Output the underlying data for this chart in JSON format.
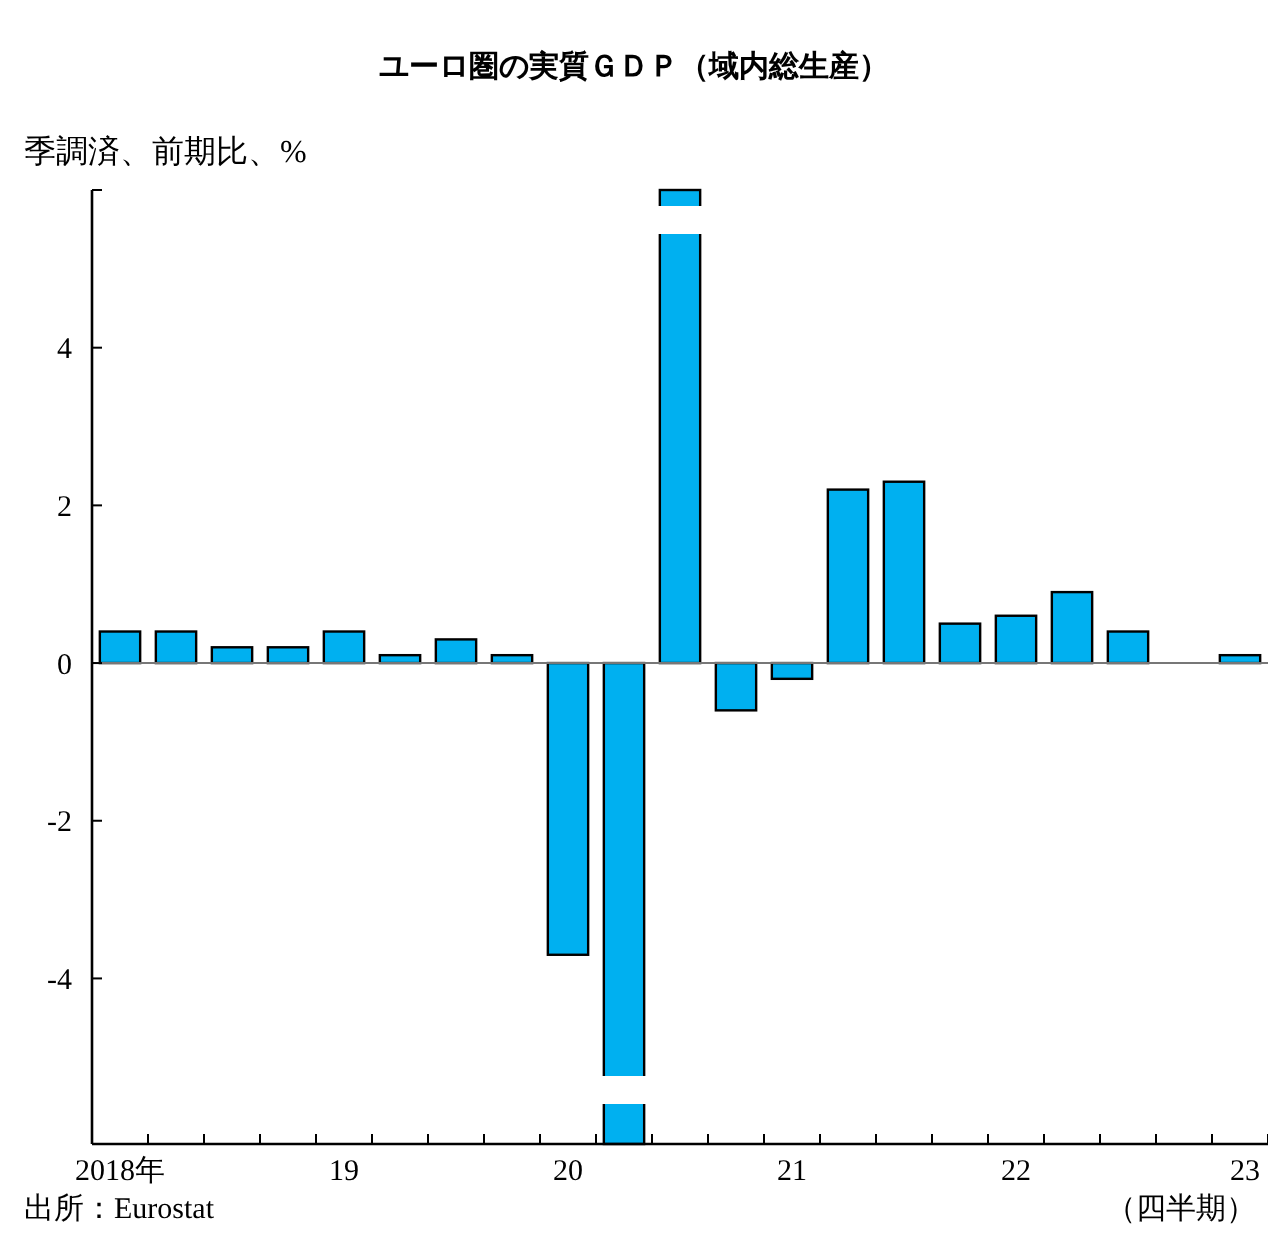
{
  "chart_data": {
    "type": "bar",
    "title": "ユーロ圏の実質ＧＤＰ（域内総生産）",
    "ylabel": "季調済、前期比、%",
    "xlabel": "（四半期）",
    "annotations": [
      "出所：Eurostat"
    ],
    "categories": [
      "2018年",
      null,
      null,
      null,
      "19",
      null,
      null,
      null,
      "20",
      null,
      null,
      null,
      "21",
      null,
      null,
      null,
      "22",
      null,
      null,
      null,
      "23"
    ],
    "values": [
      0.4,
      0.4,
      0.2,
      0.2,
      0.4,
      0.1,
      0.3,
      0.1,
      -3.7,
      -6.1,
      6,
      -0.6,
      -0.2,
      2.2,
      2.3,
      0.5,
      0.6,
      0.9,
      0.4,
      0,
      0.1
    ],
    "color": "#00b0f0",
    "ylim": [
      -6.1,
      6
    ],
    "yticks": [
      -4,
      -2,
      0,
      2,
      4
    ]
  }
}
